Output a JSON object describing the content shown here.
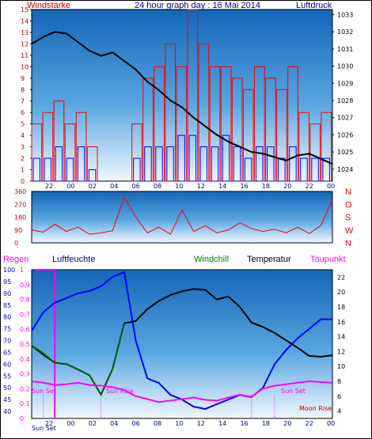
{
  "header": {
    "left_label": "Windstärke",
    "title": "24 hour graph day : 16 Mai 2014",
    "right_label": "Luftdruck"
  },
  "panel_labels": {
    "regen": "Regen",
    "luftfeuchte": "Luftfeuchte",
    "windchill": "Windchill",
    "temperatur": "Temperatur",
    "taupunkt": "Taupunkt"
  },
  "annotations": {
    "sun_set": "Sun Set",
    "sun_rise": "Sun Rise",
    "moon_rise": "Moon Rise",
    "sun_set_axis": "Sun Set"
  },
  "colors": {
    "background": "#ffffff",
    "plot_top": "#1d6fbf",
    "plot_bottom": "#eef6ff",
    "wind_gust": "#ff0000",
    "wind_avg": "#0000ff",
    "pressure": "#000000",
    "direction": "#ff0000",
    "humidity": "#0000ff",
    "temperature": "#000000",
    "windchill": "#007000",
    "dewpoint": "#ff00ff",
    "rain": "#ff00ff",
    "title_text": "#000080",
    "regen_text": "#ff00ff",
    "luftfeuchte_text": "#000080",
    "windchill_text": "#008000",
    "taupunkt_text": "#ff00ff",
    "wind_axis_text": "#c00000",
    "dir_axis_text": "#ff0000"
  },
  "chart_data": [
    {
      "type": "line",
      "name_ref": "wind_pressure",
      "x_tick_labels": [
        "22",
        "00",
        "02",
        "04",
        "06",
        "08",
        "10",
        "12",
        "14",
        "16",
        "18",
        "20",
        "22",
        "00"
      ],
      "wind": {
        "ylim": [
          0,
          15
        ],
        "yticks": [
          0,
          1,
          2,
          3,
          4,
          5,
          6,
          7,
          8,
          9,
          10,
          11,
          12,
          13,
          14,
          15
        ],
        "x": [
          0,
          1,
          2,
          3,
          4,
          5,
          6,
          7,
          8,
          9,
          10,
          11,
          12,
          13,
          14,
          15,
          16,
          17,
          18,
          19,
          20,
          21,
          22,
          23,
          24,
          25,
          26
        ],
        "gust": [
          5,
          6,
          7,
          5,
          6,
          3,
          0,
          0,
          0,
          5,
          9,
          10,
          12,
          10,
          15,
          12,
          10,
          10,
          9,
          8,
          10,
          9,
          8,
          10,
          6,
          5,
          6
        ],
        "avg": [
          2,
          2,
          3,
          2,
          3,
          1,
          0,
          0,
          0,
          2,
          3,
          3,
          3,
          4,
          4,
          3,
          3,
          4,
          3,
          2,
          3,
          3,
          2,
          3,
          2,
          2,
          2
        ]
      },
      "pressure": {
        "ylim": [
          1023.3,
          1033.3
        ],
        "yticks": [
          1024,
          1025,
          1026,
          1027,
          1028,
          1029,
          1030,
          1031,
          1032,
          1033
        ],
        "x": [
          0,
          1,
          2,
          3,
          4,
          5,
          6,
          7,
          8,
          9,
          10,
          11,
          12,
          13,
          14,
          15,
          16,
          17,
          18,
          19,
          20,
          21,
          22,
          23,
          24,
          25,
          26
        ],
        "values": [
          1031.3,
          1031.7,
          1032.0,
          1031.9,
          1031.4,
          1030.9,
          1030.6,
          1030.8,
          1030.3,
          1029.8,
          1029.1,
          1028.6,
          1028.0,
          1027.6,
          1027.0,
          1026.5,
          1026.0,
          1025.6,
          1025.3,
          1025.0,
          1024.9,
          1024.7,
          1024.5,
          1024.8,
          1024.9,
          1024.6,
          1024.3
        ]
      }
    },
    {
      "type": "line",
      "name_ref": "wind_direction",
      "ylim": [
        0,
        360
      ],
      "yticks": [
        0,
        90,
        180,
        270,
        360
      ],
      "compass_labels": [
        "N",
        "W",
        "S",
        "O",
        "N"
      ],
      "x": [
        0,
        1,
        2,
        3,
        4,
        5,
        6,
        7,
        8,
        9,
        10,
        11,
        12,
        13,
        14,
        15,
        16,
        17,
        18,
        19,
        20,
        21,
        22,
        23,
        24,
        25,
        26
      ],
      "values": [
        90,
        75,
        130,
        80,
        110,
        60,
        70,
        85,
        320,
        180,
        70,
        110,
        60,
        230,
        80,
        120,
        70,
        90,
        140,
        100,
        80,
        95,
        70,
        110,
        65,
        120,
        300
      ]
    },
    {
      "type": "line",
      "name_ref": "humidity_temperature",
      "humidity": {
        "ylim": [
          37,
          100
        ],
        "yticks": [
          40,
          45,
          50,
          55,
          60,
          65,
          70,
          75,
          80,
          85,
          90,
          95,
          100
        ],
        "x": [
          0,
          1,
          2,
          3,
          4,
          5,
          6,
          7,
          8,
          9,
          10,
          11,
          12,
          13,
          14,
          15,
          16,
          17,
          18,
          19,
          20,
          21,
          22,
          23,
          24,
          25,
          26
        ],
        "values": [
          74,
          82,
          86,
          88,
          90,
          91,
          93,
          97,
          99,
          70,
          54,
          52,
          47,
          45,
          42,
          41,
          43,
          45,
          47,
          46,
          50,
          60,
          66,
          71,
          75,
          79,
          79
        ]
      },
      "temperature": {
        "ylim": [
          3,
          23
        ],
        "yticks": [
          4,
          6,
          8,
          10,
          12,
          14,
          16,
          18,
          20,
          22
        ],
        "x": [
          0,
          1,
          2,
          3,
          4,
          5,
          6,
          7,
          8,
          9,
          10,
          11,
          12,
          13,
          14,
          15,
          16,
          17,
          18,
          19,
          20,
          21,
          22,
          23,
          24,
          25,
          26
        ],
        "values": [
          12.8,
          11.6,
          10.5,
          10.3,
          9.6,
          8.8,
          6.2,
          9.7,
          15.8,
          16.1,
          17.7,
          18.8,
          19.6,
          20.1,
          20.4,
          20.3,
          19.0,
          19.4,
          18.0,
          15.9,
          15.3,
          14.5,
          13.5,
          12.5,
          11.4,
          11.3,
          11.5
        ]
      },
      "windchill": {
        "x": [
          0,
          1,
          2,
          3,
          4,
          5,
          6,
          7,
          8
        ],
        "values": [
          12.8,
          11.8,
          10.5,
          10.3,
          9.6,
          8.8,
          6.2,
          9.7,
          15.8
        ]
      },
      "dewpoint": {
        "x": [
          0,
          1,
          2,
          3,
          4,
          5,
          6,
          7,
          8,
          9,
          10,
          11,
          12,
          13,
          14,
          15,
          16,
          17,
          18,
          19,
          20,
          21,
          22,
          23,
          24,
          25,
          26
        ],
        "values": [
          8.0,
          7.8,
          7.5,
          7.6,
          7.8,
          7.5,
          7.4,
          7.2,
          6.8,
          6.0,
          5.6,
          5.2,
          5.4,
          5.6,
          5.8,
          5.5,
          5.4,
          5.8,
          6.2,
          5.9,
          7.0,
          7.4,
          7.6,
          7.8,
          8.0,
          7.9,
          7.8
        ]
      },
      "rain": {
        "ylim": [
          0,
          1.0
        ],
        "yticks": [
          0,
          0.1,
          0.2,
          0.3,
          0.4,
          0.5,
          0.6,
          0.7,
          0.8,
          0.9,
          1.0
        ],
        "value": 1.0,
        "note": "rain gauge at 1.0 until 00"
      }
    }
  ]
}
